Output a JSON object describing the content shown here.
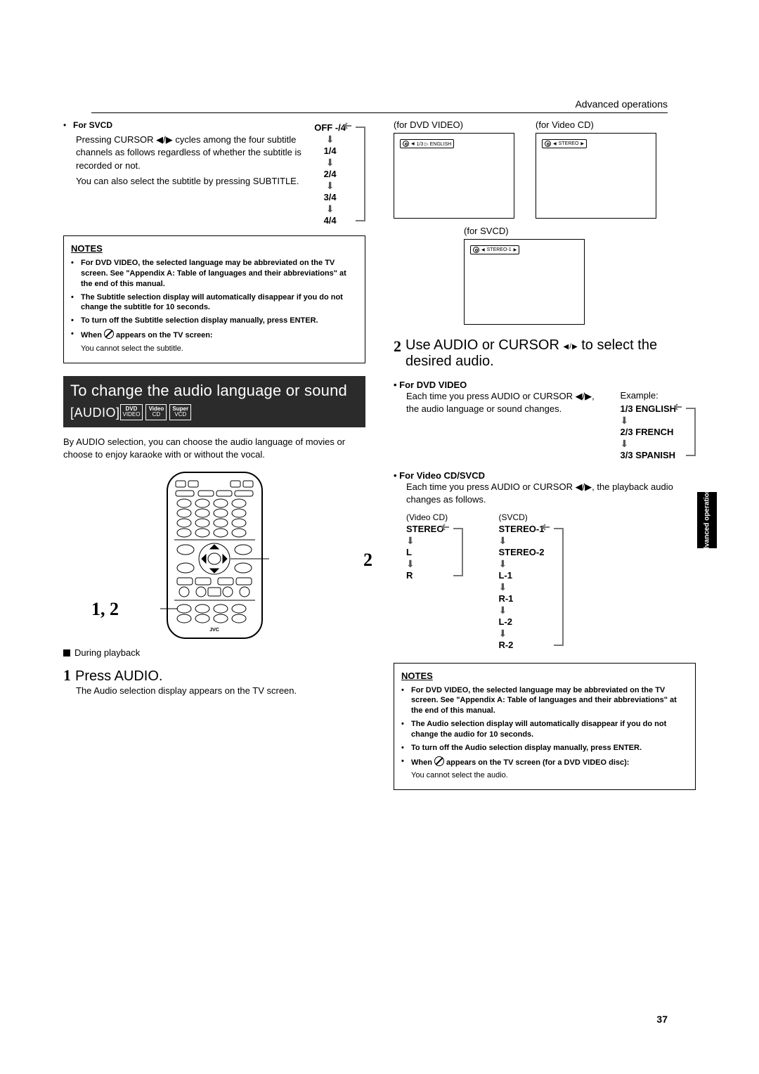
{
  "page_number": "37",
  "header": "Advanced operations",
  "left": {
    "svcd_head": "For SVCD",
    "svcd_p1": "Pressing CURSOR ◀/▶ cycles among the four subtitle channels as follows regardless of whether the subtitle is recorded or not.",
    "svcd_p2": "You can also select the subtitle by pressing SUBTITLE.",
    "svcd_seq": [
      "OFF  -/4",
      "1/4",
      "2/4",
      "3/4",
      "4/4"
    ],
    "notes_title": "NOTES",
    "notes": [
      "For DVD VIDEO, the selected language may be abbreviated on the TV screen.  See \"Appendix A: Table of languages and their abbreviations\" at the end of this manual.",
      "The Subtitle selection display will automatically disappear if you do not change the subtitle for 10 seconds.",
      "To turn off the Subtitle selection display manually, press ENTER."
    ],
    "notes_when_prefix": "When ",
    "notes_when_suffix": " appears on the TV screen:",
    "notes_when_body": "You cannot select the subtitle.",
    "band_title": "To change the audio language or sound",
    "band_sub": "[AUDIO]",
    "badges": [
      "DVD VIDEO",
      "Video CD",
      "Super VCD"
    ],
    "intro": "By AUDIO selection, you can choose the audio language of movies or choose to enjoy karaoke with or without the vocal.",
    "callout_2": "2",
    "callout_12": "1, 2",
    "during": "During playback",
    "step1_num": "1",
    "step1_txt": "Press AUDIO.",
    "step1_body": "The Audio selection display appears on the TV screen."
  },
  "right": {
    "screens": {
      "dvd": {
        "label": "(for DVD VIDEO)",
        "osd": "1/3 ▷  ENGLISH"
      },
      "vcd": {
        "label": "(for Video CD)",
        "osd": "STEREO"
      },
      "svcd": {
        "label": "(for SVCD)",
        "osd": "STEREO-1"
      }
    },
    "step2_num": "2",
    "step2_txt_a": "Use AUDIO or CURSOR ",
    "step2_txt_b": " to select the desired audio.",
    "dvd_head": "For DVD VIDEO",
    "dvd_body": "Each time you press AUDIO or CURSOR ◀/▶, the audio language or sound changes.",
    "example_label": "Example:",
    "dvd_seq": [
      "1/3 ENGLISH",
      "2/3 FRENCH",
      "3/3 SPANISH"
    ],
    "vcd_head": "For Video CD/SVCD",
    "vcd_body": "Each time you press AUDIO or CURSOR ◀/▶, the playback audio changes as follows.",
    "vcd_label": "(Video CD)",
    "vcd_seq": [
      "STEREO",
      "L",
      "R"
    ],
    "svcd_label": "(SVCD)",
    "svcd_seq": [
      "STEREO-1",
      "STEREO-2",
      "L-1",
      "R-1",
      "L-2",
      "R-2"
    ],
    "notes_title": "NOTES",
    "notes": [
      "For DVD VIDEO, the selected language may be abbreviated on the TV screen.  See \"Appendix A: Table of languages and their abbreviations\" at the end of this manual.",
      "The Audio selection display will automatically disappear if you do not change the audio for 10 seconds.",
      "To turn off the Audio selection display manually, press ENTER."
    ],
    "notes_when_prefix": "When ",
    "notes_when_suffix": " appears on the TV screen (for a DVD VIDEO disc):",
    "notes_when_body": "You cannot select the audio."
  },
  "side_tab": "Advanced\noperations"
}
